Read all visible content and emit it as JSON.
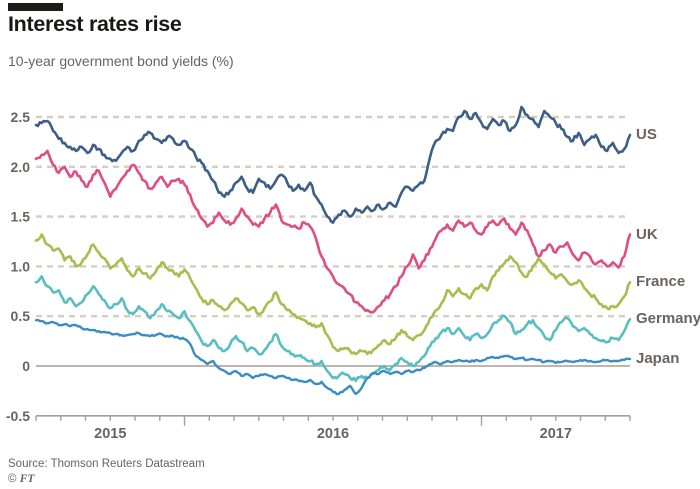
{
  "header": {
    "title": "Interest rates rise",
    "subtitle": "10-year government bond yields (%)"
  },
  "footer": {
    "source": "Source: Thomson Reuters Datastream",
    "copyright_symbol": "©",
    "copyright_brand": "FT"
  },
  "colors": {
    "background": "#ffffff",
    "title_text": "#1a1817",
    "muted_text": "#6b635d",
    "gridline": "#d8ccbf",
    "axis": "#a89e92",
    "us": "#3d5e87",
    "uk": "#e04d80",
    "france": "#a6be4d",
    "germany": "#59bec2",
    "japan": "#3a8dc1"
  },
  "chart_data": {
    "type": "line",
    "title": "Interest rates rise",
    "subtitle": "10-year government bond yields (%)",
    "xlabel": "",
    "ylabel": "10-year government bond yields (%)",
    "ylim": [
      -0.5,
      2.62
    ],
    "grid": "dashed-horizontal",
    "legend_position": "right-of-line-ends",
    "y_axis": {
      "ticks": [
        {
          "label": "2.5",
          "value": 2.5
        },
        {
          "label": "2.0",
          "value": 2.0
        },
        {
          "label": "1.5",
          "value": 1.5
        },
        {
          "label": "1.0",
          "value": 1.0
        },
        {
          "label": "0.5",
          "value": 0.5
        },
        {
          "label": "0",
          "value": 0.0
        },
        {
          "label": "-0.5",
          "value": -0.5
        }
      ],
      "gridlines_at": [
        2.5,
        2.0,
        1.5,
        1.0,
        0.5
      ],
      "zero_line": true
    },
    "x_axis": {
      "minor_tick_count": 25,
      "tall_tick_indices": [
        6,
        18
      ],
      "tick_labels": [
        {
          "label": "2015",
          "span": [
            0,
            6
          ]
        },
        {
          "label": "2016",
          "span": [
            6,
            18
          ]
        },
        {
          "label": "2017",
          "span": [
            18,
            24
          ]
        }
      ]
    },
    "x_unit": "weekly samples, mid-2015 to mid-2017",
    "series": [
      {
        "name": "US",
        "color": "#3d5e87",
        "values": [
          2.42,
          2.44,
          2.46,
          2.36,
          2.28,
          2.24,
          2.2,
          2.16,
          2.2,
          2.14,
          2.22,
          2.18,
          2.12,
          2.08,
          2.06,
          2.14,
          2.2,
          2.16,
          2.26,
          2.32,
          2.34,
          2.28,
          2.24,
          2.3,
          2.28,
          2.22,
          2.26,
          2.18,
          2.1,
          2.04,
          1.96,
          1.86,
          1.74,
          1.7,
          1.76,
          1.84,
          1.9,
          1.78,
          1.74,
          1.88,
          1.84,
          1.78,
          1.86,
          1.92,
          1.84,
          1.76,
          1.82,
          1.76,
          1.84,
          1.7,
          1.62,
          1.5,
          1.44,
          1.52,
          1.56,
          1.5,
          1.58,
          1.54,
          1.6,
          1.56,
          1.62,
          1.58,
          1.64,
          1.6,
          1.74,
          1.8,
          1.76,
          1.82,
          1.86,
          2.1,
          2.26,
          2.32,
          2.38,
          2.36,
          2.5,
          2.56,
          2.48,
          2.54,
          2.44,
          2.38,
          2.48,
          2.42,
          2.46,
          2.36,
          2.42,
          2.6,
          2.52,
          2.48,
          2.4,
          2.56,
          2.5,
          2.44,
          2.38,
          2.3,
          2.26,
          2.34,
          2.22,
          2.28,
          2.32,
          2.2,
          2.16,
          2.24,
          2.14,
          2.18,
          2.32
        ]
      },
      {
        "name": "UK",
        "color": "#e04d80",
        "values": [
          2.08,
          2.12,
          2.16,
          2.02,
          1.94,
          2.0,
          1.9,
          1.95,
          1.86,
          1.8,
          1.92,
          1.96,
          1.84,
          1.7,
          1.78,
          1.88,
          1.96,
          2.02,
          1.94,
          1.86,
          1.78,
          1.84,
          1.9,
          1.8,
          1.86,
          1.88,
          1.82,
          1.72,
          1.58,
          1.48,
          1.4,
          1.44,
          1.54,
          1.46,
          1.42,
          1.48,
          1.58,
          1.5,
          1.42,
          1.4,
          1.48,
          1.54,
          1.62,
          1.46,
          1.42,
          1.4,
          1.38,
          1.44,
          1.4,
          1.28,
          1.1,
          0.98,
          0.9,
          0.82,
          0.78,
          0.72,
          0.64,
          0.6,
          0.56,
          0.54,
          0.6,
          0.66,
          0.72,
          0.8,
          0.9,
          1.0,
          1.12,
          0.98,
          1.06,
          1.18,
          1.28,
          1.36,
          1.42,
          1.36,
          1.46,
          1.4,
          1.44,
          1.36,
          1.32,
          1.4,
          1.46,
          1.42,
          1.48,
          1.38,
          1.32,
          1.44,
          1.36,
          1.22,
          1.1,
          1.16,
          1.22,
          1.14,
          1.2,
          1.24,
          1.12,
          1.06,
          1.14,
          1.1,
          1.02,
          1.06,
          1.0,
          1.04,
          0.99,
          1.1,
          1.32
        ]
      },
      {
        "name": "France",
        "color": "#a6be4d",
        "values": [
          1.26,
          1.32,
          1.22,
          1.16,
          1.18,
          1.06,
          1.1,
          1.0,
          1.04,
          1.12,
          1.22,
          1.14,
          1.08,
          0.98,
          1.02,
          1.08,
          0.96,
          0.9,
          0.98,
          0.93,
          0.88,
          0.95,
          1.04,
          0.98,
          0.95,
          0.9,
          0.97,
          0.88,
          0.78,
          0.68,
          0.62,
          0.66,
          0.6,
          0.56,
          0.62,
          0.68,
          0.63,
          0.56,
          0.59,
          0.52,
          0.58,
          0.65,
          0.74,
          0.62,
          0.56,
          0.52,
          0.49,
          0.46,
          0.43,
          0.39,
          0.43,
          0.31,
          0.19,
          0.15,
          0.18,
          0.15,
          0.12,
          0.15,
          0.12,
          0.16,
          0.21,
          0.26,
          0.22,
          0.28,
          0.36,
          0.3,
          0.26,
          0.31,
          0.36,
          0.48,
          0.56,
          0.63,
          0.76,
          0.7,
          0.78,
          0.72,
          0.68,
          0.78,
          0.82,
          0.76,
          0.9,
          0.96,
          1.03,
          1.1,
          1.04,
          0.94,
          0.9,
          1.0,
          1.08,
          1.02,
          0.94,
          0.88,
          0.92,
          0.85,
          0.82,
          0.86,
          0.78,
          0.72,
          0.68,
          0.62,
          0.58,
          0.6,
          0.62,
          0.7,
          0.84
        ]
      },
      {
        "name": "Germany",
        "color": "#59bec2",
        "values": [
          0.84,
          0.9,
          0.8,
          0.74,
          0.76,
          0.64,
          0.68,
          0.6,
          0.64,
          0.72,
          0.8,
          0.72,
          0.66,
          0.58,
          0.62,
          0.68,
          0.56,
          0.52,
          0.6,
          0.55,
          0.48,
          0.55,
          0.62,
          0.55,
          0.52,
          0.48,
          0.55,
          0.45,
          0.35,
          0.25,
          0.2,
          0.26,
          0.18,
          0.15,
          0.22,
          0.3,
          0.24,
          0.15,
          0.18,
          0.12,
          0.16,
          0.24,
          0.32,
          0.2,
          0.15,
          0.12,
          0.1,
          0.08,
          0.05,
          0.02,
          0.05,
          -0.05,
          -0.12,
          -0.1,
          -0.08,
          -0.12,
          -0.15,
          -0.1,
          -0.12,
          -0.08,
          -0.04,
          0.0,
          -0.04,
          0.02,
          0.08,
          0.04,
          0.0,
          0.04,
          0.1,
          0.2,
          0.28,
          0.34,
          0.38,
          0.32,
          0.38,
          0.3,
          0.26,
          0.32,
          0.28,
          0.32,
          0.42,
          0.46,
          0.5,
          0.44,
          0.32,
          0.36,
          0.42,
          0.46,
          0.38,
          0.3,
          0.26,
          0.36,
          0.44,
          0.48,
          0.4,
          0.35,
          0.38,
          0.32,
          0.28,
          0.25,
          0.24,
          0.28,
          0.26,
          0.35,
          0.47
        ]
      },
      {
        "name": "Japan",
        "color": "#3a8dc1",
        "values": [
          0.46,
          0.45,
          0.43,
          0.44,
          0.41,
          0.42,
          0.4,
          0.41,
          0.38,
          0.37,
          0.36,
          0.35,
          0.34,
          0.33,
          0.32,
          0.31,
          0.31,
          0.32,
          0.33,
          0.31,
          0.3,
          0.31,
          0.32,
          0.3,
          0.3,
          0.28,
          0.27,
          0.22,
          0.1,
          0.06,
          0.02,
          0.05,
          -0.02,
          -0.05,
          -0.08,
          -0.05,
          -0.1,
          -0.08,
          -0.12,
          -0.1,
          -0.08,
          -0.1,
          -0.12,
          -0.1,
          -0.12,
          -0.14,
          -0.15,
          -0.16,
          -0.14,
          -0.18,
          -0.16,
          -0.22,
          -0.26,
          -0.28,
          -0.24,
          -0.2,
          -0.28,
          -0.22,
          -0.12,
          -0.07,
          -0.08,
          -0.05,
          -0.08,
          -0.06,
          -0.08,
          -0.05,
          -0.06,
          -0.04,
          -0.02,
          0.02,
          0.04,
          0.02,
          0.05,
          0.04,
          0.06,
          0.05,
          0.04,
          0.06,
          0.05,
          0.08,
          0.09,
          0.08,
          0.1,
          0.09,
          0.07,
          0.08,
          0.06,
          0.07,
          0.06,
          0.04,
          0.05,
          0.03,
          0.04,
          0.05,
          0.04,
          0.05,
          0.06,
          0.05,
          0.04,
          0.05,
          0.06,
          0.05,
          0.05,
          0.06,
          0.07
        ]
      }
    ]
  }
}
